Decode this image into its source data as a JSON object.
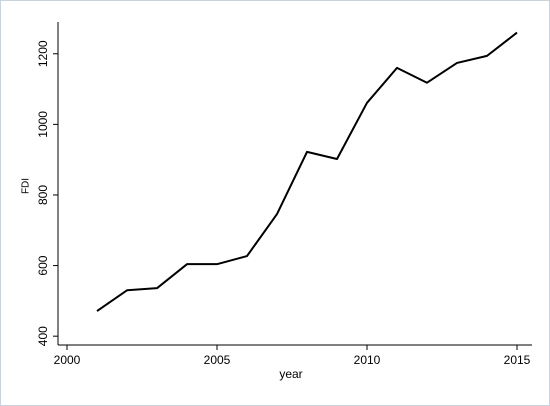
{
  "chart_data": {
    "type": "line",
    "x_label": "year",
    "y_label": "FDI",
    "x": [
      2001,
      2002,
      2003,
      2004,
      2005,
      2006,
      2007,
      2008,
      2009,
      2010,
      2011,
      2012,
      2013,
      2014,
      2015
    ],
    "values": [
      471,
      530,
      536,
      604,
      604,
      627,
      746,
      922,
      902,
      1061,
      1160,
      1118,
      1174,
      1194,
      1260
    ],
    "color": "#000000",
    "xlim": [
      1999.7,
      2015.5
    ],
    "xticks": [
      2000,
      2005,
      2010,
      2015
    ],
    "ylim": [
      375,
      1290
    ],
    "yticks": [
      400,
      600,
      800,
      1000,
      1200
    ],
    "grid": false
  }
}
